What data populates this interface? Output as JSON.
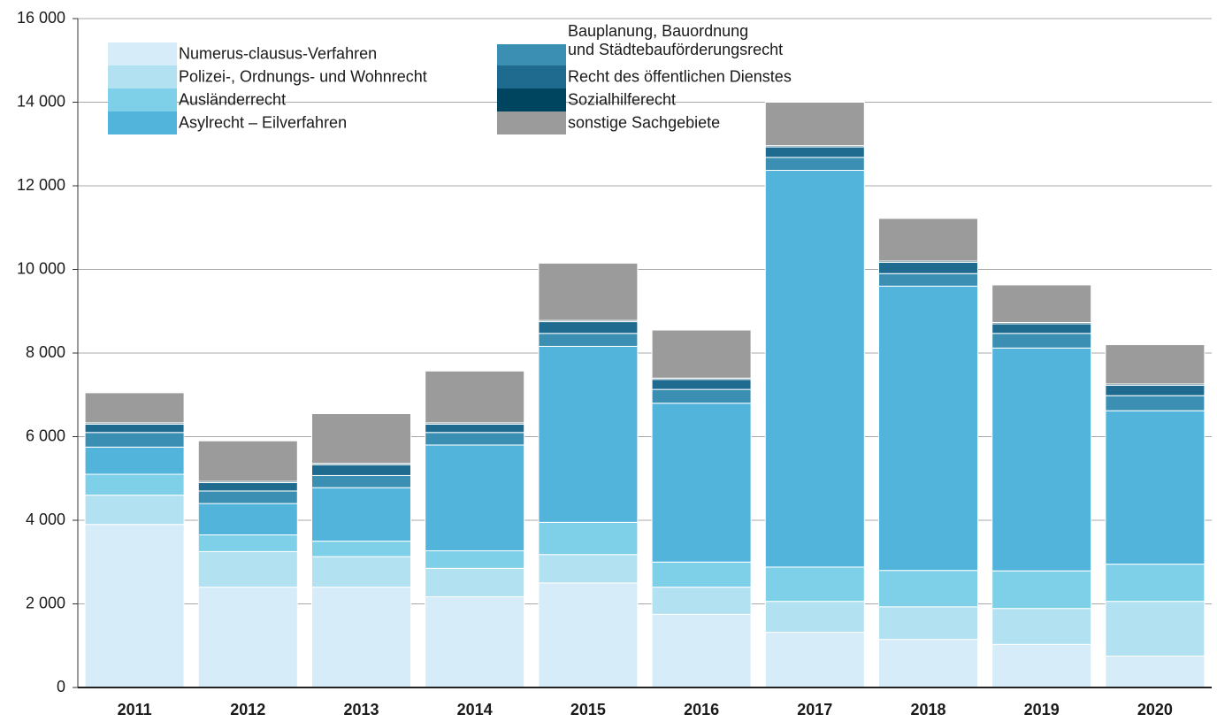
{
  "chart_data": {
    "type": "stacked-bar",
    "categories": [
      "2011",
      "2012",
      "2013",
      "2014",
      "2015",
      "2016",
      "2017",
      "2018",
      "2019",
      "2020"
    ],
    "series": [
      {
        "name": "Numerus-clausus-Verfahren",
        "color": "#d6ecf8",
        "values": [
          3900,
          2400,
          2400,
          2170,
          2500,
          1750,
          1320,
          1150,
          1030,
          750
        ]
      },
      {
        "name": "Polizei-, Ordnungs- und Wohnrecht",
        "color": "#b2e1f1",
        "values": [
          700,
          850,
          730,
          680,
          680,
          650,
          740,
          780,
          860,
          1310
        ]
      },
      {
        "name": "Ausländerrecht",
        "color": "#7ecfe8",
        "values": [
          500,
          400,
          370,
          420,
          770,
          600,
          820,
          870,
          900,
          890
        ]
      },
      {
        "name": "Asylrecht – Eilverfahren",
        "color": "#52b3db",
        "values": [
          650,
          750,
          1280,
          2530,
          4210,
          3800,
          9490,
          6800,
          5330,
          3670
        ]
      },
      {
        "name": "Bauplanung, Bauordnung\nund Städtebauförderungsrecht",
        "color": "#3b8fb3",
        "values": [
          350,
          300,
          290,
          300,
          310,
          330,
          310,
          300,
          350,
          360
        ]
      },
      {
        "name": "Recht des öffentlichen Dienstes",
        "color": "#1e6b8f",
        "values": [
          200,
          200,
          260,
          200,
          280,
          240,
          250,
          270,
          230,
          250
        ]
      },
      {
        "name": "Sozialhilferecht",
        "color": "#00455f",
        "values": [
          30,
          30,
          30,
          30,
          30,
          30,
          30,
          30,
          30,
          30
        ]
      },
      {
        "name": "sonstige Sachgebiete",
        "color": "#9b9b9b",
        "values": [
          720,
          970,
          1190,
          1240,
          1370,
          1150,
          1040,
          1020,
          900,
          940
        ]
      }
    ],
    "ylim": [
      0,
      16000
    ],
    "yticks": [
      0,
      {
        "value": 2000,
        "label": "2 000"
      },
      {
        "value": 4000,
        "label": "4 000"
      },
      {
        "value": 6000,
        "label": "6 000"
      },
      {
        "value": 8000,
        "label": "8 000"
      },
      {
        "value": 10000,
        "label": "10 000"
      },
      {
        "value": 12000,
        "label": "12 000"
      },
      {
        "value": 14000,
        "label": "14 000"
      },
      {
        "value": 16000,
        "label": "16 000"
      }
    ],
    "grid": true
  }
}
